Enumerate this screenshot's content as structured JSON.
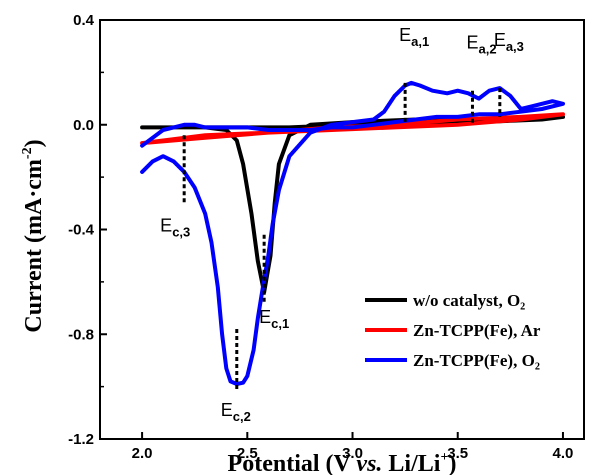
{
  "chart_data": {
    "type": "line",
    "xlabel": {
      "prefix": "Potential (V ",
      "italic": "vs.",
      "suffix": " Li/Li",
      "sup": "+",
      "end": ")"
    },
    "ylabel": {
      "prefix": "Current (mA·cm",
      "sup": "-2",
      "end": ")"
    },
    "xlim": [
      1.8,
      4.1
    ],
    "ylim": [
      -1.2,
      0.4
    ],
    "x_ticks": [
      2.0,
      2.5,
      3.0,
      3.5,
      4.0
    ],
    "x_tick_labels": [
      "2.0",
      "2.5",
      "3.0",
      "3.5",
      "4.0"
    ],
    "y_ticks": [
      0.4,
      0.0,
      -0.4,
      -0.8,
      -1.2
    ],
    "y_tick_labels": [
      "0.4",
      "0.0",
      "-0.4",
      "-0.8",
      "-1.2"
    ],
    "grid": false,
    "legend_position": "bottom-right",
    "series": [
      {
        "name": "w/o catalyst, O₂",
        "color": "#000000",
        "x": [
          2.0,
          2.3,
          2.4,
          2.45,
          2.48,
          2.52,
          2.55,
          2.58,
          2.61,
          2.63,
          2.65,
          2.7,
          2.8,
          3.0,
          3.3,
          3.6,
          3.9,
          4.0,
          3.9,
          3.6,
          3.3,
          3.0,
          2.7,
          2.4,
          2.1,
          2.0
        ],
        "y": [
          -0.01,
          -0.01,
          -0.02,
          -0.06,
          -0.15,
          -0.34,
          -0.52,
          -0.64,
          -0.5,
          -0.3,
          -0.15,
          -0.04,
          0.0,
          0.01,
          0.02,
          0.02,
          0.02,
          0.03,
          0.02,
          0.01,
          0.0,
          0.0,
          -0.01,
          -0.01,
          -0.01,
          -0.01
        ]
      },
      {
        "name": "Zn-TCPP(Fe), Ar",
        "color": "#ff0000",
        "x": [
          2.0,
          2.3,
          2.6,
          2.9,
          3.2,
          3.5,
          3.8,
          4.0,
          3.8,
          3.5,
          3.2,
          2.9,
          2.6,
          2.3,
          2.0
        ],
        "y": [
          -0.07,
          -0.05,
          -0.03,
          -0.01,
          0.0,
          0.02,
          0.03,
          0.04,
          0.02,
          0.0,
          -0.01,
          -0.02,
          -0.03,
          -0.04,
          -0.07
        ]
      },
      {
        "name": "Zn-TCPP(Fe), O₂",
        "color": "#0000ff",
        "x": [
          2.0,
          2.05,
          2.1,
          2.15,
          2.2,
          2.25,
          2.3,
          2.33,
          2.36,
          2.38,
          2.4,
          2.42,
          2.45,
          2.48,
          2.5,
          2.53,
          2.55,
          2.57,
          2.6,
          2.62,
          2.65,
          2.7,
          2.8,
          2.9,
          3.0,
          3.1,
          3.15,
          3.2,
          3.25,
          3.28,
          3.32,
          3.38,
          3.45,
          3.5,
          3.55,
          3.6,
          3.65,
          3.7,
          3.75,
          3.8,
          3.85,
          3.9,
          3.95,
          4.0,
          3.9,
          3.8,
          3.7,
          3.6,
          3.5,
          3.4,
          3.3,
          3.2,
          3.1,
          3.0,
          2.9,
          2.8,
          2.7,
          2.6,
          2.5,
          2.4,
          2.3,
          2.25,
          2.2,
          2.15,
          2.1,
          2.05,
          2.0
        ],
        "y": [
          -0.18,
          -0.14,
          -0.12,
          -0.14,
          -0.18,
          -0.24,
          -0.34,
          -0.45,
          -0.62,
          -0.8,
          -0.93,
          -0.98,
          -0.99,
          -0.985,
          -0.96,
          -0.86,
          -0.74,
          -0.64,
          -0.5,
          -0.38,
          -0.25,
          -0.12,
          -0.03,
          0.0,
          0.01,
          0.02,
          0.05,
          0.11,
          0.15,
          0.16,
          0.15,
          0.13,
          0.12,
          0.13,
          0.12,
          0.1,
          0.13,
          0.14,
          0.11,
          0.06,
          0.07,
          0.08,
          0.09,
          0.08,
          0.06,
          0.05,
          0.04,
          0.04,
          0.03,
          0.03,
          0.02,
          0.01,
          0.0,
          -0.01,
          -0.01,
          -0.02,
          -0.02,
          -0.02,
          -0.01,
          -0.01,
          -0.01,
          0.0,
          0.0,
          -0.01,
          -0.02,
          -0.05,
          -0.08
        ]
      }
    ],
    "annotations": [
      {
        "label": "E",
        "sub": "a,1",
        "x": 3.25,
        "y_top": 0.16,
        "y_bottom": 0.0
      },
      {
        "label": "E",
        "sub": "a,2",
        "x": 3.57,
        "y_top": 0.13,
        "y_bottom": 0.0
      },
      {
        "label": "E",
        "sub": "a,3",
        "x": 3.7,
        "y_top": 0.14,
        "y_bottom": 0.03
      },
      {
        "label": "E",
        "sub": "c,1",
        "x": 2.58,
        "y_top": -0.42,
        "y_bottom": -0.68
      },
      {
        "label": "E",
        "sub": "c,2",
        "x": 2.45,
        "y_top": -0.78,
        "y_bottom": -1.02
      },
      {
        "label": "E",
        "sub": "c,3",
        "x": 2.2,
        "y_top": -0.04,
        "y_bottom": -0.3
      }
    ]
  }
}
